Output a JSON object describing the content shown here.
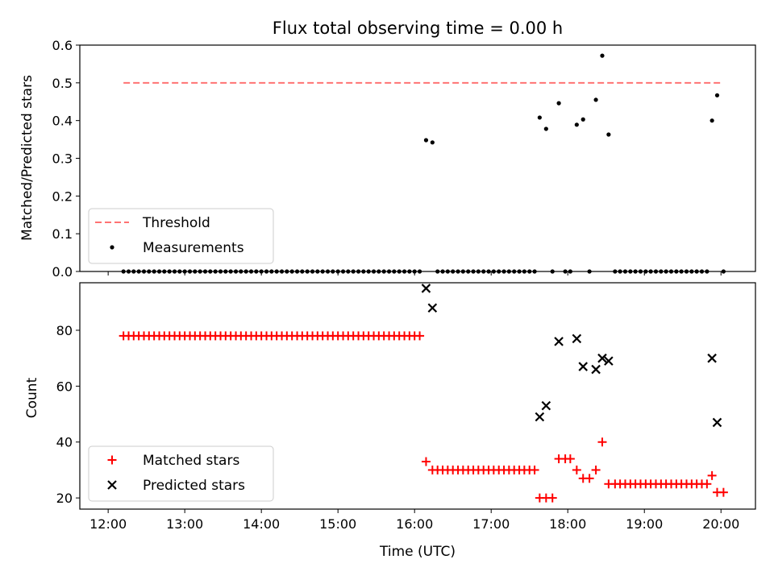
{
  "title": "Flux total observing time = 0.00 h",
  "chart_data": [
    {
      "type": "scatter",
      "ylabel": "Matched/Predicted stars",
      "xlim": [
        11.63,
        20.45
      ],
      "ylim": [
        0.0,
        0.6
      ],
      "yticks": [
        "0.0",
        "0.1",
        "0.2",
        "0.3",
        "0.4",
        "0.5",
        "0.6"
      ],
      "legend_position": "lower-left",
      "threshold": {
        "name": "Threshold",
        "value": 0.5,
        "x_range": [
          12.2,
          20.0
        ],
        "color": "#ff7373"
      },
      "series": [
        {
          "name": "Measurements",
          "marker": "dot",
          "color": "#000000",
          "x": [
            12.2,
            12.267,
            12.333,
            12.4,
            12.467,
            12.533,
            12.6,
            12.667,
            12.733,
            12.8,
            12.867,
            12.933,
            13.0,
            13.067,
            13.133,
            13.2,
            13.267,
            13.333,
            13.4,
            13.467,
            13.533,
            13.6,
            13.667,
            13.733,
            13.8,
            13.867,
            13.933,
            14.0,
            14.067,
            14.133,
            14.2,
            14.267,
            14.333,
            14.4,
            14.467,
            14.533,
            14.6,
            14.667,
            14.733,
            14.8,
            14.867,
            14.933,
            15.0,
            15.067,
            15.133,
            15.2,
            15.267,
            15.333,
            15.4,
            15.467,
            15.533,
            15.6,
            15.667,
            15.733,
            15.8,
            15.867,
            15.933,
            16.0,
            16.067,
            16.15,
            16.233,
            16.3,
            16.367,
            16.433,
            16.5,
            16.567,
            16.633,
            16.7,
            16.767,
            16.833,
            16.9,
            16.967,
            17.033,
            17.1,
            17.167,
            17.233,
            17.3,
            17.367,
            17.433,
            17.5,
            17.567,
            17.633,
            17.717,
            17.8,
            17.883,
            17.967,
            18.033,
            18.117,
            18.2,
            18.283,
            18.367,
            18.45,
            18.533,
            18.617,
            18.683,
            18.75,
            18.817,
            18.883,
            18.95,
            19.017,
            19.083,
            19.15,
            19.217,
            19.283,
            19.35,
            19.417,
            19.483,
            19.55,
            19.617,
            19.683,
            19.75,
            19.817,
            19.883,
            19.95,
            20.033
          ],
          "y": [
            0,
            0,
            0,
            0,
            0,
            0,
            0,
            0,
            0,
            0,
            0,
            0,
            0,
            0,
            0,
            0,
            0,
            0,
            0,
            0,
            0,
            0,
            0,
            0,
            0,
            0,
            0,
            0,
            0,
            0,
            0,
            0,
            0,
            0,
            0,
            0,
            0,
            0,
            0,
            0,
            0,
            0,
            0,
            0,
            0,
            0,
            0,
            0,
            0,
            0,
            0,
            0,
            0,
            0,
            0,
            0,
            0,
            0,
            0,
            0.348,
            0.342,
            0,
            0,
            0,
            0,
            0,
            0,
            0,
            0,
            0,
            0,
            0,
            0,
            0,
            0,
            0,
            0,
            0,
            0,
            0,
            0,
            0.408,
            0.378,
            0,
            0.446,
            0,
            0,
            0.389,
            0.403,
            0,
            0.455,
            0.572,
            0.363,
            0,
            0,
            0,
            0,
            0,
            0,
            0,
            0,
            0,
            0,
            0,
            0,
            0,
            0,
            0,
            0,
            0,
            0,
            0,
            0.4,
            0.467,
            0
          ]
        }
      ]
    },
    {
      "type": "scatter",
      "xlabel": "Time (UTC)",
      "ylabel": "Count",
      "xlim": [
        11.63,
        20.45
      ],
      "ylim": [
        16.0,
        97.0
      ],
      "yticks": [
        "20",
        "40",
        "60",
        "80"
      ],
      "xticks": [
        "12:00",
        "13:00",
        "14:00",
        "15:00",
        "16:00",
        "17:00",
        "18:00",
        "19:00",
        "20:00"
      ],
      "legend_position": "lower-left",
      "series": [
        {
          "name": "Matched stars",
          "marker": "plus",
          "color": "#ff0000",
          "x": [
            12.2,
            12.267,
            12.333,
            12.4,
            12.467,
            12.533,
            12.6,
            12.667,
            12.733,
            12.8,
            12.867,
            12.933,
            13.0,
            13.067,
            13.133,
            13.2,
            13.267,
            13.333,
            13.4,
            13.467,
            13.533,
            13.6,
            13.667,
            13.733,
            13.8,
            13.867,
            13.933,
            14.0,
            14.067,
            14.133,
            14.2,
            14.267,
            14.333,
            14.4,
            14.467,
            14.533,
            14.6,
            14.667,
            14.733,
            14.8,
            14.867,
            14.933,
            15.0,
            15.067,
            15.133,
            15.2,
            15.267,
            15.333,
            15.4,
            15.467,
            15.533,
            15.6,
            15.667,
            15.733,
            15.8,
            15.867,
            15.933,
            16.0,
            16.067,
            16.15,
            16.233,
            16.3,
            16.367,
            16.433,
            16.5,
            16.567,
            16.633,
            16.7,
            16.767,
            16.833,
            16.9,
            16.967,
            17.033,
            17.1,
            17.167,
            17.233,
            17.3,
            17.367,
            17.433,
            17.5,
            17.567,
            17.633,
            17.717,
            17.8,
            17.883,
            17.967,
            18.033,
            18.117,
            18.2,
            18.283,
            18.367,
            18.45,
            18.533,
            18.617,
            18.683,
            18.75,
            18.817,
            18.883,
            18.95,
            19.017,
            19.083,
            19.15,
            19.217,
            19.283,
            19.35,
            19.417,
            19.483,
            19.55,
            19.617,
            19.683,
            19.75,
            19.817,
            19.883,
            19.95,
            20.033
          ],
          "y": [
            78,
            78,
            78,
            78,
            78,
            78,
            78,
            78,
            78,
            78,
            78,
            78,
            78,
            78,
            78,
            78,
            78,
            78,
            78,
            78,
            78,
            78,
            78,
            78,
            78,
            78,
            78,
            78,
            78,
            78,
            78,
            78,
            78,
            78,
            78,
            78,
            78,
            78,
            78,
            78,
            78,
            78,
            78,
            78,
            78,
            78,
            78,
            78,
            78,
            78,
            78,
            78,
            78,
            78,
            78,
            78,
            78,
            78,
            78,
            33,
            30,
            30,
            30,
            30,
            30,
            30,
            30,
            30,
            30,
            30,
            30,
            30,
            30,
            30,
            30,
            30,
            30,
            30,
            30,
            30,
            30,
            20,
            20,
            20,
            34,
            34,
            34,
            30,
            27,
            27,
            30,
            40,
            25,
            25,
            25,
            25,
            25,
            25,
            25,
            25,
            25,
            25,
            25,
            25,
            25,
            25,
            25,
            25,
            25,
            25,
            25,
            25,
            28,
            22,
            22
          ]
        },
        {
          "name": "Predicted stars",
          "marker": "x",
          "color": "#000000",
          "x": [
            16.15,
            16.233,
            17.633,
            17.717,
            17.883,
            18.117,
            18.2,
            18.367,
            18.45,
            18.533,
            19.883,
            19.95
          ],
          "y": [
            95,
            88,
            49,
            53,
            76,
            77,
            67,
            66,
            70,
            69,
            70,
            47
          ]
        }
      ]
    }
  ]
}
